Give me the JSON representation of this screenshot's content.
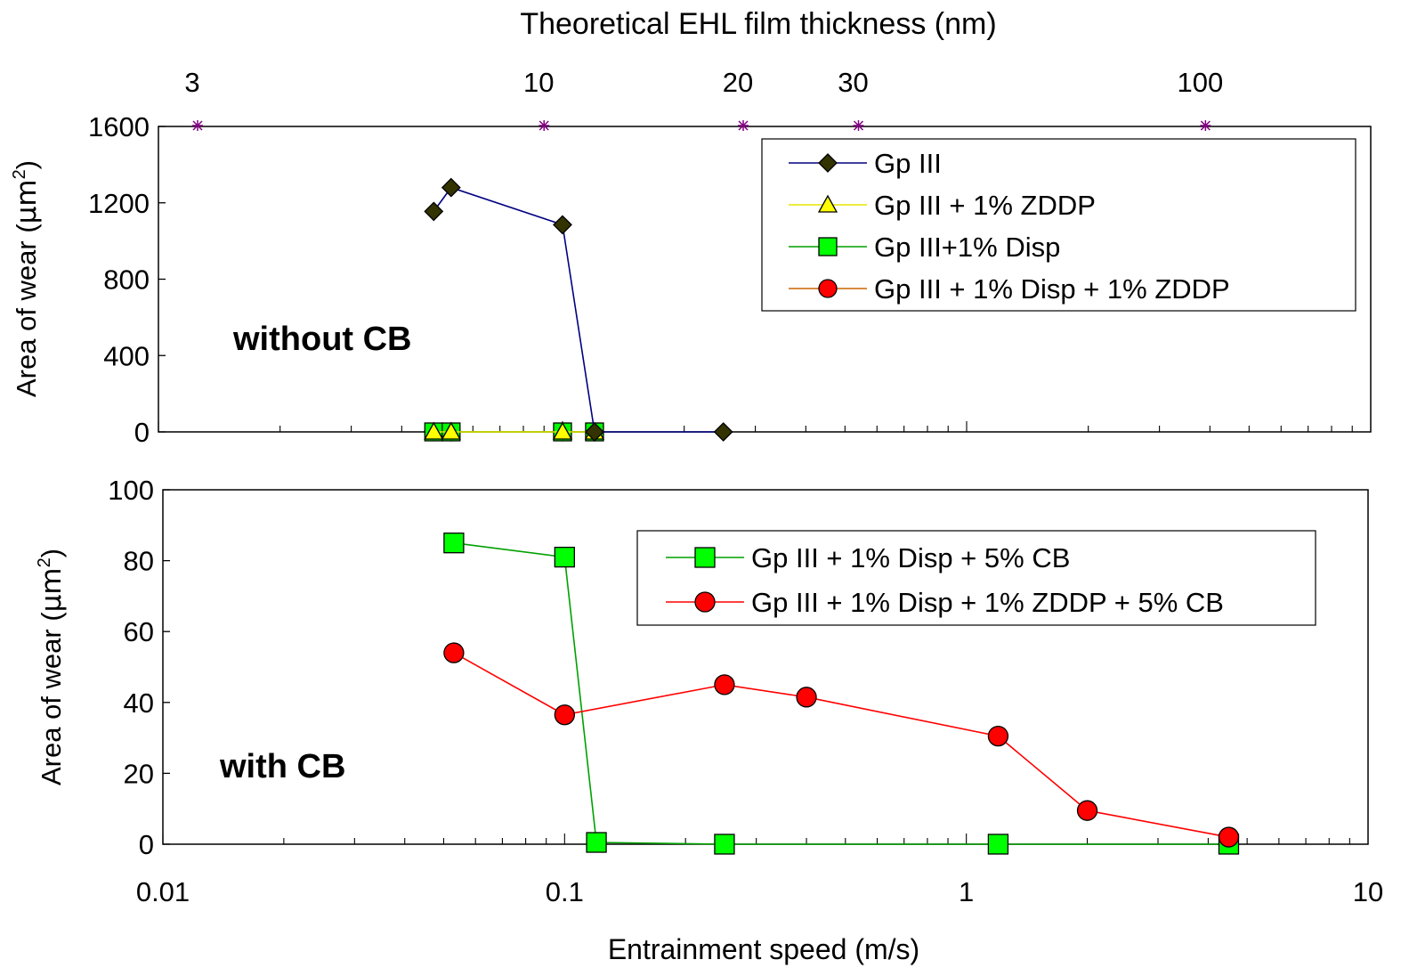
{
  "chart_data": [
    {
      "type": "line",
      "panel": "top",
      "xscale": "log",
      "xlim": [
        0.01,
        10
      ],
      "ylim": [
        0,
        1600
      ],
      "yticks": [
        "0",
        "400",
        "800",
        "1200",
        "1600"
      ],
      "ylabel_main": "Area of wear (",
      "ylabel_unit": "μm",
      "ylabel_sup": "2",
      "ylabel_close": ")",
      "top_axis_label": "Theoretical EHL film thickness (nm)",
      "top_axis_ticks": [
        {
          "label": "3",
          "x": 0.0125
        },
        {
          "label": "10",
          "x": 0.09
        },
        {
          "label": "20",
          "x": 0.28
        },
        {
          "label": "30",
          "x": 0.54
        },
        {
          "label": "100",
          "x": 3.9
        }
      ],
      "annotation": "without CB",
      "legend_position": "top-right",
      "series": [
        {
          "name": "Gp III",
          "color": "#000080",
          "marker": "diamond",
          "marker_fill": "#333300",
          "x": [
            0.048,
            0.053,
            0.1,
            0.12,
            0.25
          ],
          "y": [
            1155,
            1280,
            1085,
            0,
            0
          ]
        },
        {
          "name": "Gp III + 1% ZDDP",
          "color": "#e6e600",
          "marker": "triangle",
          "marker_fill": "#ffff00",
          "x": [
            0.048,
            0.053,
            0.1,
            0.12
          ],
          "y": [
            0,
            0,
            0,
            0
          ]
        },
        {
          "name": "Gp III+1% Disp",
          "color": "#00a000",
          "marker": "square",
          "marker_fill": "#00ff00",
          "x": [
            0.048,
            0.053,
            0.1,
            0.12
          ],
          "y": [
            0,
            0,
            0,
            0
          ]
        },
        {
          "name": "Gp III + 1% Disp + 1% ZDDP",
          "color": "#cc6600",
          "marker": "circle",
          "marker_fill": "#ff0000",
          "x": [
            0.048,
            0.053,
            0.1,
            0.12
          ],
          "y": [
            0,
            0,
            0,
            0
          ]
        }
      ]
    },
    {
      "type": "line",
      "panel": "bottom",
      "xscale": "log",
      "xlim": [
        0.01,
        10
      ],
      "ylim": [
        0,
        100
      ],
      "xticks": [
        "0.01",
        "0.1",
        "1",
        "10"
      ],
      "yticks": [
        "0",
        "20",
        "40",
        "60",
        "80",
        "100"
      ],
      "xlabel": "Entrainment speed (m/s)",
      "ylabel_main": "Area of wear (",
      "ylabel_unit": "μm",
      "ylabel_sup": "2",
      "ylabel_close": ")",
      "annotation": "with CB",
      "legend_position": "top-right",
      "series": [
        {
          "name": "Gp III + 1% Disp + 5% CB",
          "color": "#00a000",
          "marker": "square",
          "marker_fill": "#00ff00",
          "x": [
            0.053,
            0.1,
            0.12,
            0.25,
            1.2,
            4.5
          ],
          "y": [
            85,
            81,
            0.5,
            0,
            0,
            0
          ]
        },
        {
          "name": "Gp III + 1% Disp + 1% ZDDP + 5% CB",
          "color": "#ff0000",
          "marker": "circle",
          "marker_fill": "#ff0000",
          "x": [
            0.053,
            0.1,
            0.25,
            0.4,
            1.2,
            2.0,
            4.5
          ],
          "y": [
            54,
            36.5,
            45,
            41.5,
            30.5,
            9.5,
            2
          ]
        }
      ]
    }
  ]
}
